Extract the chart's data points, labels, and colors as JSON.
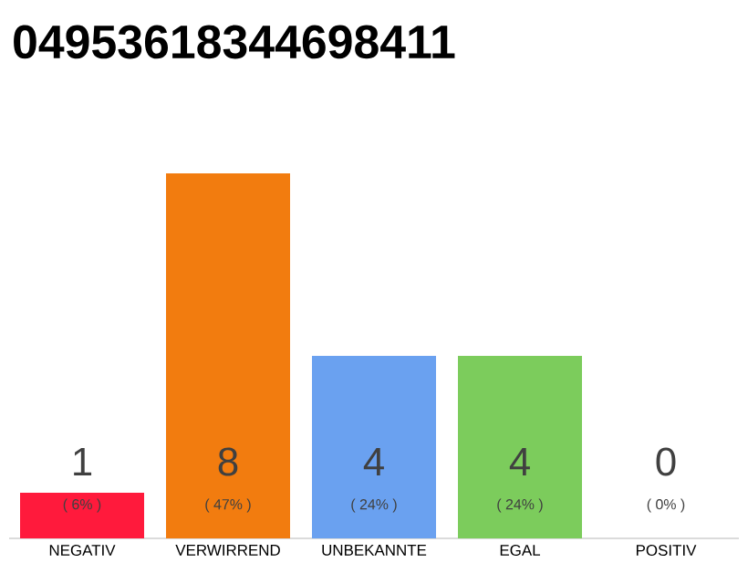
{
  "chart_data": {
    "type": "bar",
    "title": "04953618344698411",
    "categories": [
      "NEGATIV",
      "VERWIRREND",
      "UNBEKANNTE",
      "EGAL",
      "POSITIV"
    ],
    "values": [
      1,
      8,
      4,
      4,
      0
    ],
    "colors": [
      "#ff1a3c",
      "#f27c0f",
      "#6aa1f0",
      "#7ccc5c",
      "#cccccc"
    ],
    "value_labels": [
      "1",
      "8",
      "4",
      "4",
      "0"
    ],
    "annotations": [
      "( 6% )",
      "( 47% )",
      "( 24% )",
      "( 24% )",
      "( 0% )"
    ],
    "tick_labels": "x"
  }
}
